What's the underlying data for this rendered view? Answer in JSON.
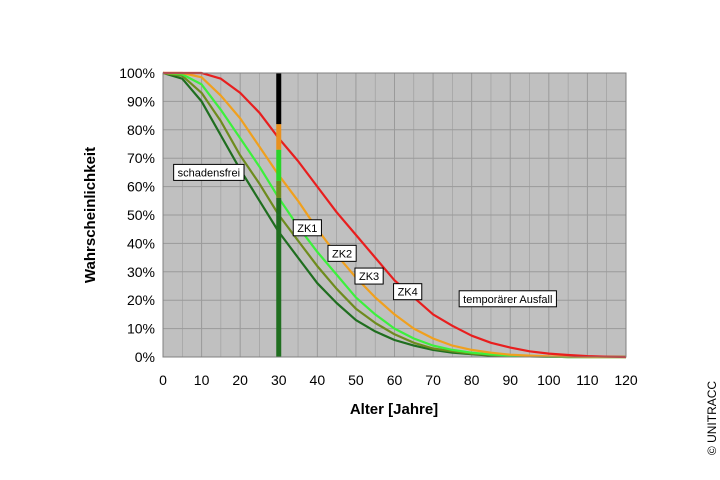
{
  "chart_data": {
    "type": "line",
    "xlabel": "Alter [Jahre]",
    "ylabel": "Wahrscheinlichkeit",
    "xlim": [
      0,
      120
    ],
    "ylim": [
      0,
      100
    ],
    "x_ticks": [
      "0",
      "10",
      "20",
      "30",
      "40",
      "50",
      "60",
      "70",
      "80",
      "90",
      "100",
      "110",
      "120"
    ],
    "y_ticks": [
      "0%",
      "10%",
      "20%",
      "30%",
      "40%",
      "50%",
      "60%",
      "70%",
      "80%",
      "90%",
      "100%"
    ],
    "grid": true,
    "x": [
      0,
      5,
      10,
      15,
      20,
      25,
      30,
      35,
      40,
      45,
      50,
      55,
      60,
      65,
      70,
      75,
      80,
      85,
      90,
      95,
      100,
      105,
      110,
      115,
      120
    ],
    "series": [
      {
        "color": "#1f6e1f",
        "values": [
          100,
          98,
          90,
          78,
          66,
          55,
          44,
          35,
          26,
          19,
          13,
          9,
          6,
          4,
          2.5,
          1.5,
          1,
          0.5,
          0.3,
          0.2,
          0.1,
          0,
          0,
          0,
          0
        ]
      },
      {
        "color": "#6e8c1e",
        "values": [
          100,
          99,
          93,
          83,
          71,
          61,
          50,
          41,
          32,
          24,
          17,
          12,
          8,
          5,
          3,
          2,
          1.2,
          0.7,
          0.4,
          0.2,
          0.1,
          0,
          0,
          0,
          0
        ]
      },
      {
        "color": "#3cf03c",
        "values": [
          100,
          99.5,
          96,
          87,
          77,
          67,
          56,
          46,
          37,
          29,
          21,
          15,
          10,
          6.5,
          4,
          2.5,
          1.5,
          0.9,
          0.5,
          0.3,
          0.1,
          0,
          0,
          0,
          0
        ]
      },
      {
        "color": "#f0a01e",
        "values": [
          100,
          100,
          98.5,
          92,
          84,
          74,
          64,
          55,
          45,
          36,
          28,
          21,
          15,
          10,
          6.5,
          4,
          2.5,
          1.5,
          0.8,
          0.5,
          0.2,
          0.1,
          0,
          0,
          0
        ]
      },
      {
        "color": "#e81e1e",
        "values": [
          100,
          100,
          100,
          98,
          93,
          86,
          77,
          69,
          60,
          51,
          43,
          35,
          27,
          21,
          15,
          11,
          7.5,
          5,
          3.3,
          2,
          1.2,
          0.7,
          0.3,
          0.1,
          0
        ]
      }
    ],
    "marker": {
      "x": 30,
      "segments": [
        {
          "color": "#1f6e1f",
          "from": 0,
          "to": 56
        },
        {
          "color": "#6e8c1e",
          "from": 56,
          "to": 62
        },
        {
          "color": "#2ad42a",
          "from": 62,
          "to": 73
        },
        {
          "color": "#e8901e",
          "from": 73,
          "to": 82
        },
        {
          "color": "#000000",
          "from": 82,
          "to": 100
        }
      ]
    },
    "annotations": [
      {
        "text": "schadensfrei",
        "x": 2.5,
        "y": 65
      },
      {
        "text": "ZK1",
        "x": 33.5,
        "y": 45.5
      },
      {
        "text": "ZK2",
        "x": 42.5,
        "y": 36.5
      },
      {
        "text": "ZK3",
        "x": 49.5,
        "y": 28.5
      },
      {
        "text": "ZK4",
        "x": 59.5,
        "y": 23
      },
      {
        "text": "temporärer Ausfall",
        "x": 76.5,
        "y": 20.5
      }
    ],
    "plot_background": "#c0c0c0",
    "grid_color": "#9a9a9a"
  },
  "copyright": "© UNITRACC"
}
